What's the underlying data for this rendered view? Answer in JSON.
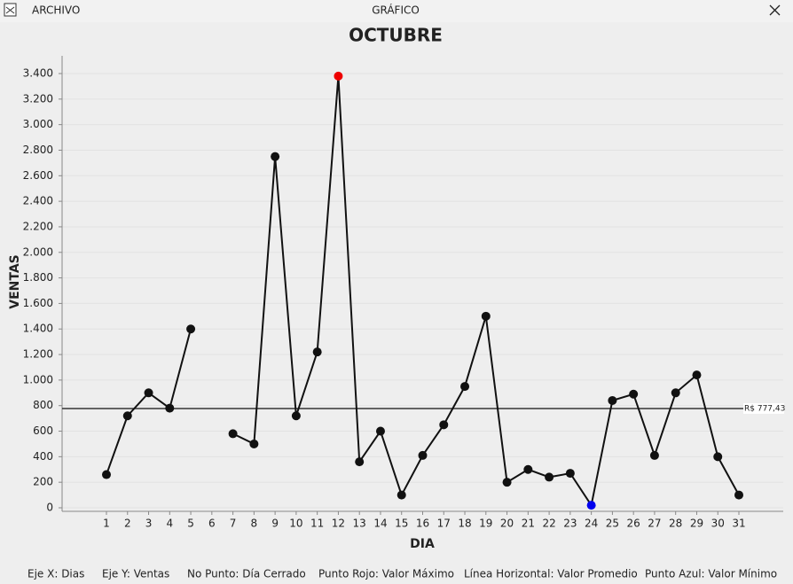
{
  "window": {
    "menu": "ARCHIVO",
    "title": "GRÁFICO"
  },
  "chart_data": {
    "type": "line",
    "title": "OCTUBRE",
    "x_label": "DIA",
    "y_label": "VENTAS",
    "categories": [
      "1",
      "2",
      "3",
      "4",
      "5",
      "6",
      "7",
      "8",
      "9",
      "10",
      "11",
      "12",
      "13",
      "14",
      "15",
      "16",
      "17",
      "18",
      "19",
      "20",
      "21",
      "22",
      "23",
      "24",
      "25",
      "26",
      "27",
      "28",
      "29",
      "30",
      "31"
    ],
    "series": [
      {
        "name": "Ventas",
        "color": "#111111",
        "values": [
          260,
          720,
          900,
          780,
          1400,
          null,
          580,
          500,
          2750,
          720,
          1220,
          3380,
          360,
          600,
          100,
          410,
          650,
          950,
          1500,
          200,
          300,
          240,
          270,
          20,
          840,
          890,
          410,
          900,
          1040,
          400,
          100
        ]
      }
    ],
    "max_color": "#ee0000",
    "min_color": "#0000ee",
    "average": {
      "value": 777.43,
      "label": "R$ 777,43"
    },
    "ylim": [
      0,
      3400
    ],
    "yticks": [
      0,
      200,
      400,
      600,
      800,
      {
        "value": 1000,
        "label": "1.000"
      },
      {
        "value": 1200,
        "label": "1.200"
      },
      {
        "value": 1400,
        "label": "1.400"
      },
      {
        "value": 1600,
        "label": "1.600"
      },
      {
        "value": 1800,
        "label": "1.800"
      },
      {
        "value": 2000,
        "label": "2.000"
      },
      {
        "value": 2200,
        "label": "2.200"
      },
      {
        "value": 2400,
        "label": "2.400"
      },
      {
        "value": 2600,
        "label": "2.600"
      },
      {
        "value": 2800,
        "label": "2.800"
      },
      {
        "value": 3000,
        "label": "3.000"
      },
      {
        "value": 3200,
        "label": "3.200"
      },
      {
        "value": 3400,
        "label": "3.400"
      }
    ],
    "grid": true
  },
  "footer": [
    "Eje X: Dias",
    "Eje Y: Ventas",
    "No Punto: Día Cerrado",
    "Punto Rojo: Valor Máximo",
    "Línea Horizontal: Valor Promedio",
    "Punto Azul: Valor Mínimo"
  ]
}
